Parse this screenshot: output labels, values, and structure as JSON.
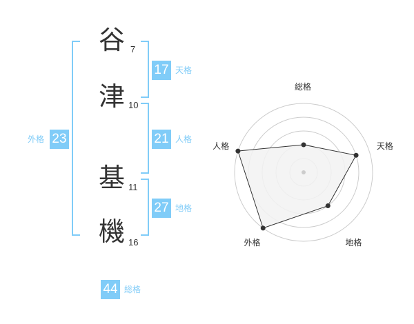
{
  "name": [
    {
      "char": "谷",
      "strokes": "7"
    },
    {
      "char": "津",
      "strokes": "10"
    },
    {
      "char": "基",
      "strokes": "11"
    },
    {
      "char": "機",
      "strokes": "16"
    }
  ],
  "fortunes": {
    "tenkaku": {
      "label": "天格",
      "value": "17"
    },
    "jinkaku": {
      "label": "人格",
      "value": "21"
    },
    "chikaku": {
      "label": "地格",
      "value": "27"
    },
    "gaikaku": {
      "label": "外格",
      "value": "23"
    },
    "soukaku": {
      "label": "総格",
      "value": "44"
    }
  },
  "colors": {
    "accent": "#80ccf8",
    "text": "#333333",
    "radar_fill": "#f2f2f2",
    "ring": "#cccccc"
  },
  "chart_data": {
    "type": "radar",
    "axes": [
      "総格",
      "天格",
      "地格",
      "外格",
      "人格"
    ],
    "values": [
      2,
      4,
      3,
      5,
      5
    ],
    "range": [
      0,
      5
    ],
    "rings": 5
  }
}
